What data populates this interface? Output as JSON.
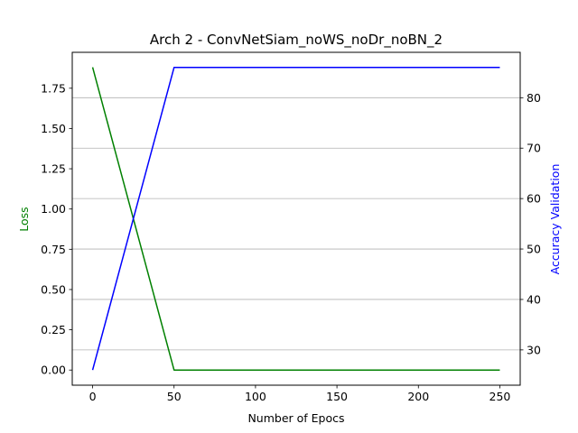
{
  "chart_data": {
    "type": "line",
    "title": "Arch 2 - ConvNetSiam_noWS_noDr_noBN_2",
    "xlabel": "Number of Epocs",
    "xlim": [
      -12.5,
      262.5
    ],
    "xticks": [
      "0",
      "50",
      "100",
      "150",
      "200",
      "250"
    ],
    "ylabel_left": "Loss",
    "ylabel_left_color": "#008000",
    "ylim_left": [
      -0.094,
      1.973
    ],
    "yticks_left": [
      "0.00",
      "0.25",
      "0.50",
      "0.75",
      "1.00",
      "1.25",
      "1.50",
      "1.75"
    ],
    "ylabel_right": "Accuracy Validation",
    "ylabel_right_color": "#0000ff",
    "ylim_right": [
      23.0,
      89.0
    ],
    "yticks_right": [
      "30",
      "40",
      "50",
      "60",
      "70",
      "80"
    ],
    "grid": "horizontal lines at right-axis ticks",
    "series": [
      {
        "axis": "left",
        "color": "#008000",
        "x": [
          0,
          50,
          100,
          150,
          200,
          250
        ],
        "y": [
          1.88,
          0.0,
          0.0,
          0.0,
          0.0,
          0.0
        ]
      },
      {
        "axis": "right",
        "color": "#0000ff",
        "x": [
          0,
          50,
          100,
          150,
          200,
          250
        ],
        "y": [
          26.0,
          86.0,
          86.0,
          86.0,
          86.0,
          86.0
        ]
      }
    ]
  }
}
